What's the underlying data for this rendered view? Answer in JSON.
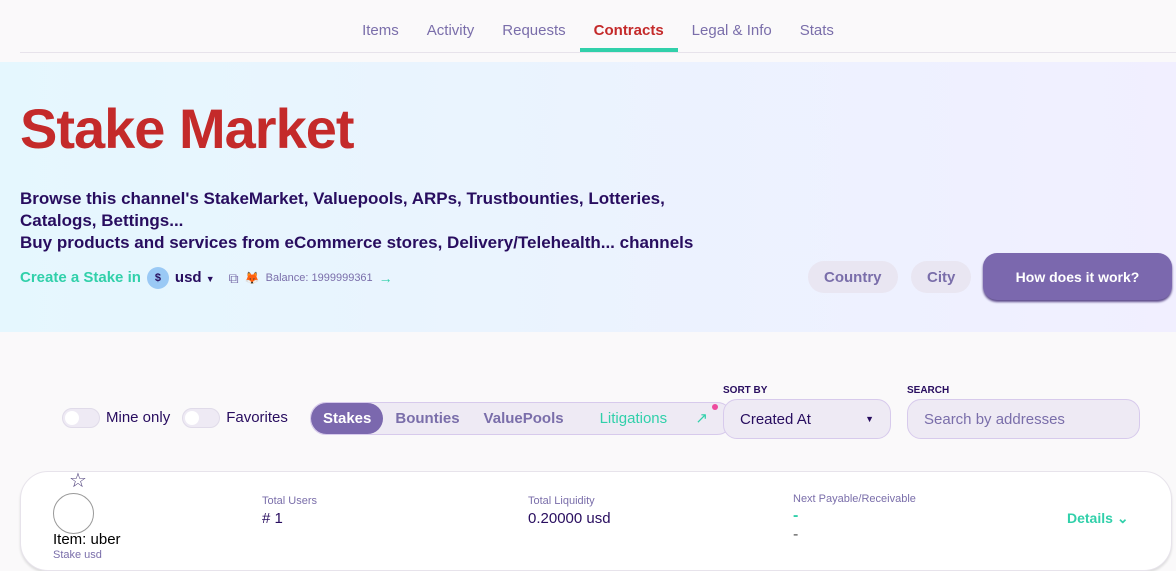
{
  "nav": [
    "Items",
    "Activity",
    "Requests",
    "Contracts",
    "Legal & Info",
    "Stats"
  ],
  "hero": {
    "title": "Stake Market",
    "desc": [
      "Browse this channel's StakeMarket, Valuepools, ARPs, Trustbounties, Lotteries,",
      "Catalogs, Bettings...",
      "Buy products and services from eCommerce stores, Delivery/Telehealth... channels"
    ],
    "create_label": "Create a Stake in",
    "coin_symbol": "$",
    "currency": "usd",
    "balance": "Balance: 1999999361",
    "country": "Country",
    "city": "City",
    "how": "How does it work?"
  },
  "filters": {
    "mine": "Mine only",
    "favorites": "Favorites",
    "tabs": [
      "Stakes",
      "Bounties",
      "ValuePools",
      "Litigations"
    ],
    "sort_label": "SORT BY",
    "sort_value": "Created At",
    "search_label": "SEARCH",
    "search_placeholder": "Search by addresses"
  },
  "card": {
    "item": "Item: uber",
    "sub": "Stake usd",
    "users_label": "Total Users",
    "users": "# 1",
    "liq_label": "Total Liquidity",
    "liq": "0.20000 usd",
    "next_label": "Next Payable/Receivable",
    "next1": "-",
    "next2": "-",
    "details": "Details"
  }
}
